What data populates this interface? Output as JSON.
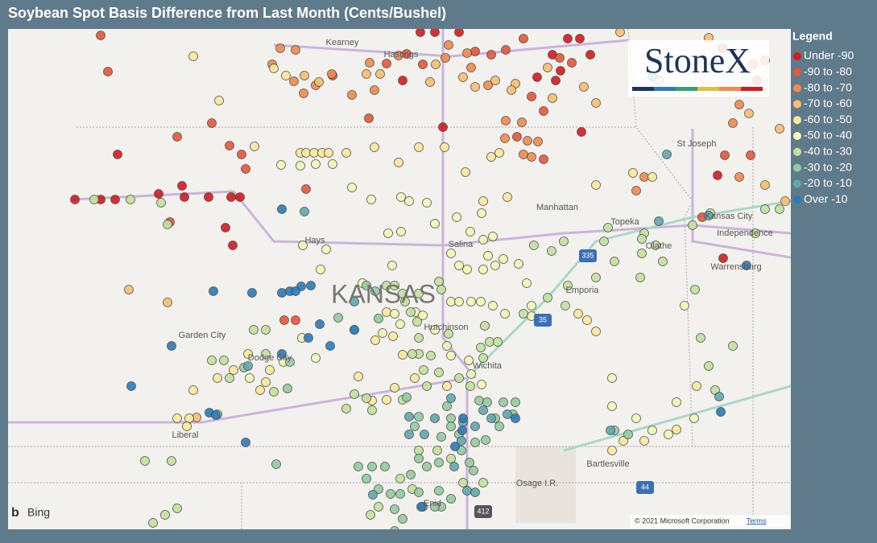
{
  "title": "Soybean Spot Basis Difference from Last Month (Cents/Bushel)",
  "legend": {
    "title": "Legend",
    "items": [
      {
        "label": "Under -90",
        "color": "#d7191c"
      },
      {
        "label": "-90 to -80",
        "color": "#e8553a"
      },
      {
        "label": "-80 to -70",
        "color": "#f08a4b"
      },
      {
        "label": "-70 to -60",
        "color": "#f8bf6e"
      },
      {
        "label": "-60 to -50",
        "color": "#fbe99a"
      },
      {
        "label": "-50 to -40",
        "color": "#f1f7b6"
      },
      {
        "label": "-40 to -30",
        "color": "#c2e29b"
      },
      {
        "label": "-30 to -20",
        "color": "#93cc9e"
      },
      {
        "label": "-20 to -10",
        "color": "#5fa8b0"
      },
      {
        "label": "Over -10",
        "color": "#2b7bba"
      }
    ]
  },
  "map": {
    "state_label": "KANSAS",
    "places": [
      "Kearney",
      "Hastings",
      "St Joseph",
      "Manhattan",
      "Topeka",
      "Kansas City",
      "Independence",
      "Olathe",
      "Warrensburg",
      "Hays",
      "Salina",
      "Emporia",
      "Hutchinson",
      "Wichita",
      "Garden City",
      "Dodge City",
      "Liberal",
      "Bartlesville",
      "Osage I.R.",
      "Enid"
    ],
    "shields": [
      "335",
      "35",
      "44",
      "412"
    ],
    "logo": "StoneX",
    "attribution": {
      "brand": "Bing",
      "copyright": "© 2021 Microsoft Corporation",
      "link": "Terms"
    }
  }
}
